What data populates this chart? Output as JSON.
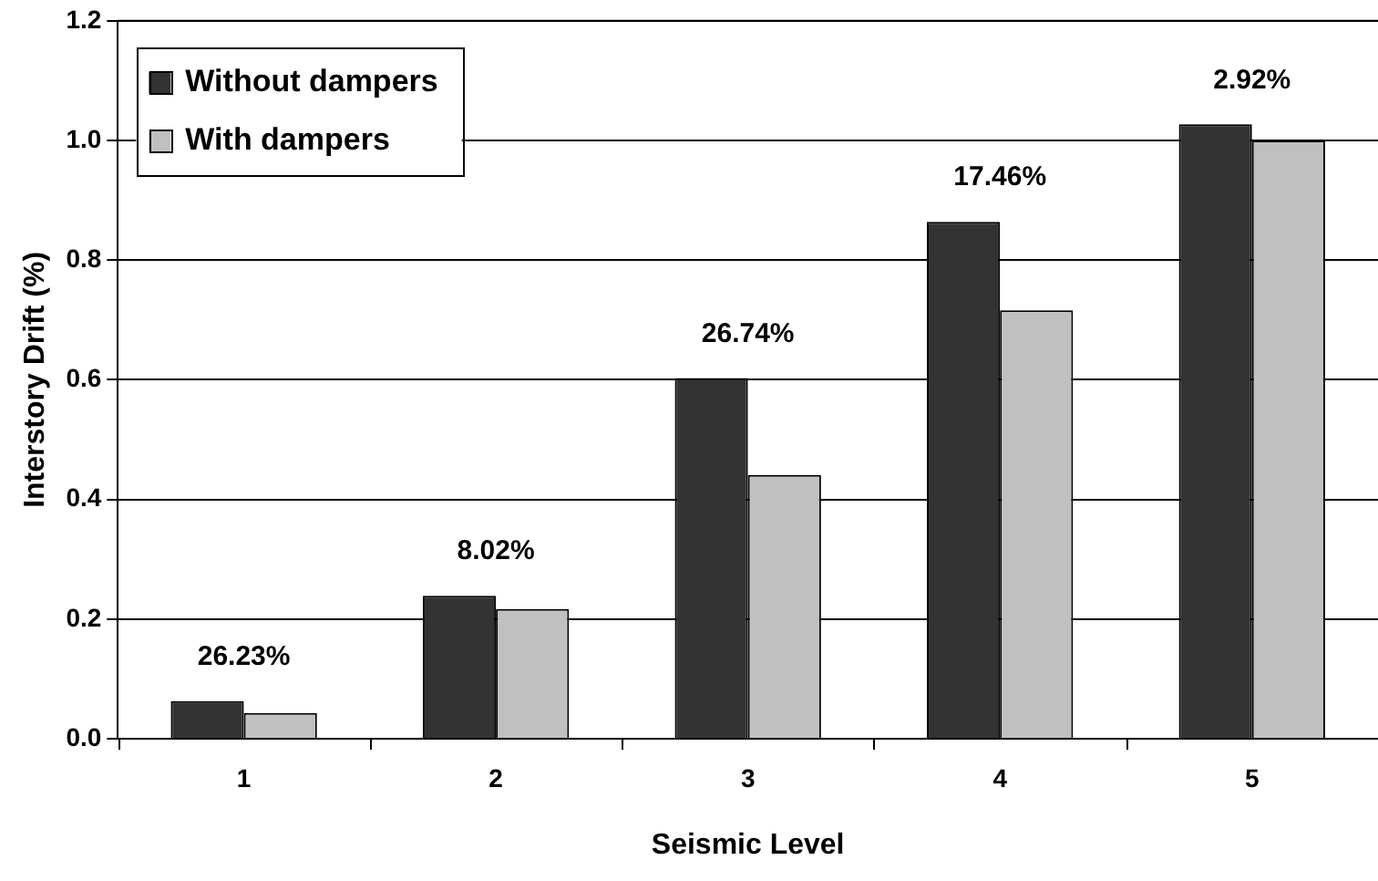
{
  "chart_data": {
    "type": "bar",
    "xlabel": "Seismic Level",
    "ylabel": "Interstory Drift (%)",
    "categories": [
      "1",
      "2",
      "3",
      "4",
      "5"
    ],
    "series": [
      {
        "name": "Without dampers",
        "color": "#333333",
        "values": [
          0.063,
          0.239,
          0.603,
          0.864,
          1.027
        ]
      },
      {
        "name": "With dampers",
        "color": "#c0c0c0",
        "values": [
          0.043,
          0.217,
          0.441,
          0.716,
          1.0
        ]
      }
    ],
    "ylim": [
      0,
      1.2
    ],
    "yticks": [
      {
        "value": 0,
        "label": "0.0"
      },
      {
        "value": 0.2,
        "label": "0.2"
      },
      {
        "value": 0.4,
        "label": "0.4"
      },
      {
        "value": 0.6,
        "label": "0.6"
      },
      {
        "value": 0.8,
        "label": "0.8"
      },
      {
        "value": 1,
        "label": "1.0"
      },
      {
        "value": 1.2,
        "label": "1.2"
      }
    ],
    "grid": "y",
    "legend": "top left",
    "annotations": [
      "26.23%",
      "8.02%",
      "26.74%",
      "17.46%",
      "2.92%"
    ]
  }
}
